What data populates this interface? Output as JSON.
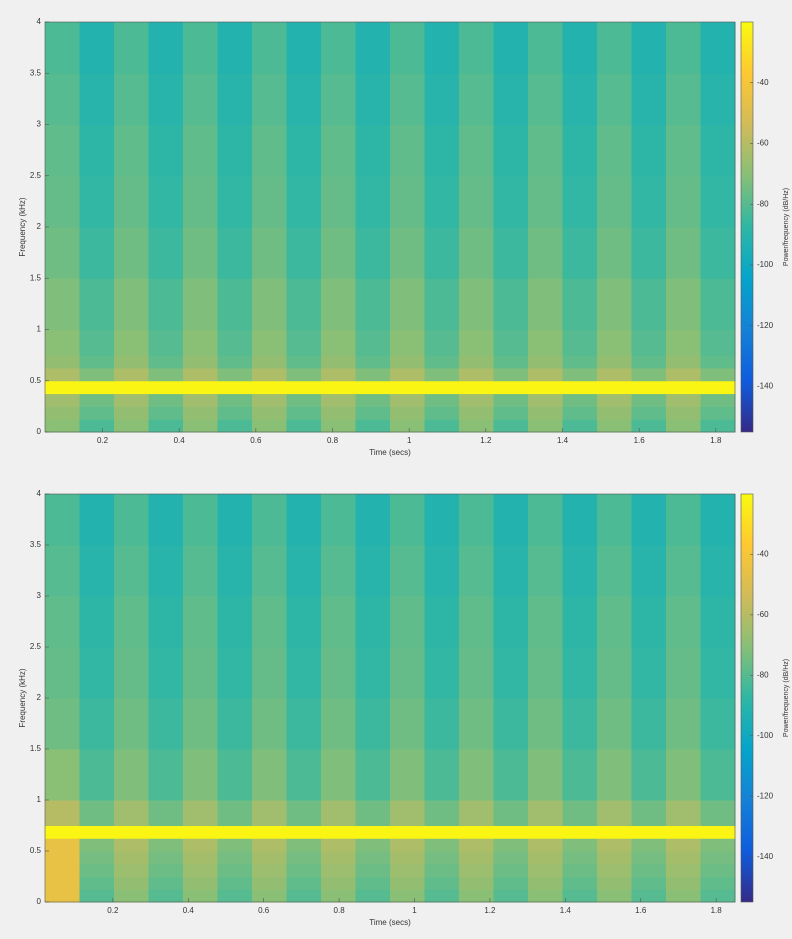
{
  "chart_data": [
    {
      "type": "spectrogram",
      "x_label": "Time (secs)",
      "y_label": "Frequency (kHz)",
      "colorbar_label": "Power/frequency (dB/Hz)",
      "xlim": [
        0.05,
        1.85
      ],
      "ylim": [
        0,
        4
      ],
      "clim": [
        -155,
        -20
      ],
      "xticks": [
        0.2,
        0.4,
        0.6,
        0.8,
        1,
        1.2,
        1.4,
        1.6,
        1.8
      ],
      "yticks": [
        0,
        0.5,
        1,
        1.5,
        2,
        2.5,
        3,
        3.5,
        4
      ],
      "cticks": [
        -40,
        -60,
        -80,
        -100,
        -120,
        -140
      ],
      "colormap": [
        "#352a87",
        "#0f5cdd",
        "#1481d6",
        "#06a4ca",
        "#2eb7a4",
        "#87bf77",
        "#d1bb59",
        "#fec832",
        "#f9fb0e"
      ],
      "y_edges": [
        0,
        0.125,
        0.25,
        0.375,
        0.5,
        0.625,
        0.75,
        1,
        1.5,
        2,
        2.5,
        3,
        3.5,
        4
      ],
      "z": [
        [
          -70,
          -82,
          -70,
          -82,
          -70,
          -82,
          -70,
          -82,
          -70,
          -82,
          -70,
          -82,
          -70,
          -82,
          -70,
          -82,
          -70,
          -82,
          -70,
          -82
        ],
        [
          -68,
          -78,
          -68,
          -78,
          -68,
          -78,
          -68,
          -78,
          -68,
          -78,
          -68,
          -78,
          -68,
          -78,
          -68,
          -78,
          -68,
          -78,
          -68,
          -78
        ],
        [
          -65,
          -75,
          -65,
          -75,
          -65,
          -75,
          -65,
          -75,
          -65,
          -75,
          -65,
          -75,
          -65,
          -75,
          -65,
          -75,
          -65,
          -75,
          -65,
          -75
        ],
        [
          -22,
          -22,
          -22,
          -22,
          -22,
          -22,
          -22,
          -22,
          -22,
          -22,
          -22,
          -22,
          -22,
          -22,
          -22,
          -22,
          -22,
          -22,
          -22,
          -22
        ],
        [
          -62,
          -72,
          -62,
          -72,
          -62,
          -72,
          -62,
          -72,
          -62,
          -72,
          -62,
          -72,
          -62,
          -72,
          -62,
          -72,
          -62,
          -72,
          -62,
          -72
        ],
        [
          -68,
          -78,
          -68,
          -78,
          -68,
          -78,
          -68,
          -78,
          -68,
          -78,
          -68,
          -78,
          -68,
          -78,
          -68,
          -78,
          -68,
          -78,
          -68,
          -78
        ],
        [
          -70,
          -80,
          -70,
          -80,
          -70,
          -80,
          -70,
          -80,
          -70,
          -80,
          -70,
          -80,
          -70,
          -80,
          -70,
          -80,
          -70,
          -80,
          -70,
          -80
        ],
        [
          -72,
          -82,
          -72,
          -82,
          -72,
          -82,
          -72,
          -82,
          -72,
          -82,
          -72,
          -82,
          -72,
          -82,
          -72,
          -82,
          -72,
          -82,
          -72,
          -82
        ],
        [
          -75,
          -85,
          -75,
          -85,
          -75,
          -85,
          -75,
          -85,
          -75,
          -85,
          -75,
          -85,
          -75,
          -85,
          -75,
          -85,
          -75,
          -85,
          -75,
          -85
        ],
        [
          -77,
          -87,
          -77,
          -87,
          -77,
          -87,
          -77,
          -87,
          -77,
          -87,
          -77,
          -87,
          -77,
          -87,
          -77,
          -87,
          -77,
          -87,
          -77,
          -87
        ],
        [
          -78,
          -88,
          -78,
          -88,
          -78,
          -88,
          -78,
          -88,
          -78,
          -88,
          -78,
          -88,
          -78,
          -88,
          -78,
          -88,
          -78,
          -88,
          -78,
          -88
        ],
        [
          -80,
          -90,
          -80,
          -90,
          -80,
          -90,
          -80,
          -90,
          -80,
          -90,
          -80,
          -90,
          -80,
          -90,
          -80,
          -90,
          -80,
          -90,
          -80,
          -90
        ],
        [
          -82,
          -92,
          -82,
          -92,
          -82,
          -92,
          -82,
          -92,
          -82,
          -92,
          -82,
          -92,
          -82,
          -92,
          -82,
          -92,
          -82,
          -92,
          -82,
          -92
        ]
      ]
    },
    {
      "type": "spectrogram",
      "x_label": "Time (secs)",
      "y_label": "Frequency (kHz)",
      "colorbar_label": "Power/frequency (dB/Hz)",
      "xlim": [
        0.02,
        1.85
      ],
      "ylim": [
        0,
        4
      ],
      "clim": [
        -155,
        -20
      ],
      "xticks": [
        0.2,
        0.4,
        0.6,
        0.8,
        1,
        1.2,
        1.4,
        1.6,
        1.8
      ],
      "yticks": [
        0,
        0.5,
        1,
        1.5,
        2,
        2.5,
        3,
        3.5,
        4
      ],
      "cticks": [
        -40,
        -60,
        -80,
        -100,
        -120,
        -140
      ],
      "colormap": [
        "#352a87",
        "#0f5cdd",
        "#1481d6",
        "#06a4ca",
        "#2eb7a4",
        "#87bf77",
        "#d1bb59",
        "#fec832",
        "#f9fb0e"
      ],
      "y_edges": [
        0,
        0.125,
        0.25,
        0.375,
        0.5,
        0.625,
        0.75,
        1,
        1.5,
        2,
        2.5,
        3,
        3.5,
        4
      ],
      "z": [
        [
          -45,
          -80,
          -70,
          -80,
          -70,
          -80,
          -70,
          -80,
          -70,
          -80,
          -70,
          -80,
          -70,
          -80,
          -70,
          -80,
          -70,
          -80,
          -70,
          -80
        ],
        [
          -45,
          -78,
          -68,
          -78,
          -68,
          -78,
          -68,
          -78,
          -68,
          -78,
          -68,
          -78,
          -68,
          -78,
          -68,
          -78,
          -68,
          -78,
          -68,
          -78
        ],
        [
          -45,
          -76,
          -66,
          -76,
          -66,
          -76,
          -66,
          -76,
          -66,
          -76,
          -66,
          -76,
          -66,
          -76,
          -66,
          -76,
          -66,
          -76,
          -66,
          -76
        ],
        [
          -45,
          -74,
          -64,
          -74,
          -64,
          -74,
          -64,
          -74,
          -64,
          -74,
          -64,
          -74,
          -64,
          -74,
          -64,
          -74,
          -64,
          -74,
          -64,
          -74
        ],
        [
          -45,
          -72,
          -62,
          -72,
          -62,
          -72,
          -62,
          -72,
          -62,
          -72,
          -62,
          -72,
          -62,
          -72,
          -62,
          -72,
          -62,
          -72,
          -62,
          -72
        ],
        [
          -22,
          -22,
          -22,
          -22,
          -22,
          -22,
          -22,
          -22,
          -22,
          -22,
          -22,
          -22,
          -22,
          -22,
          -22,
          -22,
          -22,
          -22,
          -22,
          -22
        ],
        [
          -60,
          -75,
          -65,
          -75,
          -65,
          -75,
          -65,
          -75,
          -65,
          -75,
          -65,
          -75,
          -65,
          -75,
          -65,
          -75,
          -65,
          -75,
          -65,
          -75
        ],
        [
          -70,
          -82,
          -72,
          -82,
          -72,
          -82,
          -72,
          -82,
          -72,
          -82,
          -72,
          -82,
          -72,
          -82,
          -72,
          -82,
          -72,
          -82,
          -72,
          -82
        ],
        [
          -75,
          -85,
          -75,
          -85,
          -75,
          -85,
          -75,
          -85,
          -75,
          -85,
          -75,
          -85,
          -75,
          -85,
          -75,
          -85,
          -75,
          -85,
          -75,
          -85
        ],
        [
          -77,
          -87,
          -77,
          -87,
          -77,
          -87,
          -77,
          -87,
          -77,
          -87,
          -77,
          -87,
          -77,
          -87,
          -77,
          -87,
          -77,
          -87,
          -77,
          -87
        ],
        [
          -78,
          -88,
          -78,
          -88,
          -78,
          -88,
          -78,
          -88,
          -78,
          -88,
          -78,
          -88,
          -78,
          -88,
          -78,
          -88,
          -78,
          -88,
          -78,
          -88
        ],
        [
          -80,
          -90,
          -80,
          -90,
          -80,
          -90,
          -80,
          -90,
          -80,
          -90,
          -80,
          -90,
          -80,
          -90,
          -80,
          -90,
          -80,
          -90,
          -80,
          -90
        ],
        [
          -82,
          -92,
          -82,
          -92,
          -82,
          -92,
          -82,
          -92,
          -82,
          -92,
          -82,
          -92,
          -82,
          -92,
          -82,
          -92,
          -82,
          -92,
          -82,
          -92
        ]
      ]
    }
  ]
}
